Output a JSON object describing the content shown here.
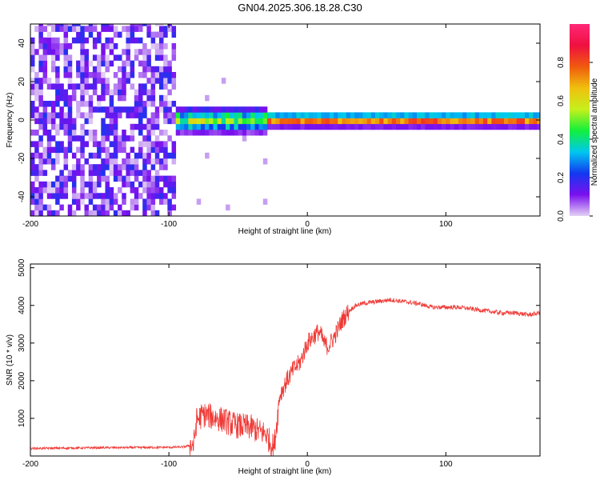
{
  "title": "GN04.2025.306.18.28.C30",
  "chart_data": [
    {
      "type": "heatmap",
      "xlabel": "Height of straight line (km)",
      "ylabel": "Frequency (Hz)",
      "xlim": [
        -200,
        168
      ],
      "ylim": [
        -50,
        50
      ],
      "xticks": [
        -200,
        -100,
        0,
        100
      ],
      "yticks": [
        -40,
        -20,
        0,
        20,
        40
      ],
      "colorbar": {
        "label": "Normalized spectral amplitude",
        "range": [
          0,
          1
        ],
        "ticks": [
          "0.0",
          "0.2",
          "0.4",
          "0.6",
          "0.8"
        ],
        "colormap": [
          "#e4d2f4",
          "#7a10ee",
          "#1238f0",
          "#00c8f0",
          "#12f03c",
          "#c6f01c",
          "#f0c00e",
          "#f05a0e",
          "#ef1040",
          "#ff2878"
        ]
      },
      "regions": [
        {
          "x_range": [
            -200,
            -95
          ],
          "description": "broadband noise",
          "amplitude": 0.15
        },
        {
          "x_range": [
            -95,
            -30
          ],
          "center_hz": 0,
          "bandwidth_hz": 8,
          "amplitude": 0.6
        },
        {
          "x_range": [
            -30,
            168
          ],
          "center_hz": 0,
          "bandwidth_hz": 4,
          "amplitude": 0.95
        }
      ]
    },
    {
      "type": "line",
      "xlabel": "Height of straight line (km)",
      "ylabel": "SNR (10 * v/v)",
      "xlim": [
        -200,
        168
      ],
      "ylim": [
        0,
        5100
      ],
      "xticks": [
        -200,
        -100,
        0,
        100
      ],
      "yticks": [
        1000,
        2000,
        3000,
        4000,
        5000
      ],
      "color": "#ef3a36",
      "series": [
        {
          "x": [
            -200,
            -150,
            -100,
            -90,
            -82,
            -80,
            -75,
            -70,
            -65,
            -60,
            -55,
            -50,
            -45,
            -40,
            -35,
            -30,
            -26,
            -24,
            -22,
            -20,
            -15,
            -10,
            -5,
            0,
            5,
            8,
            10,
            12,
            15,
            20,
            25,
            30,
            35,
            40,
            50,
            60,
            70,
            80,
            90,
            100,
            110,
            120,
            130,
            140,
            150,
            160,
            168
          ],
          "y": [
            200,
            220,
            230,
            240,
            300,
            950,
            1100,
            1050,
            1000,
            950,
            850,
            800,
            780,
            750,
            650,
            600,
            300,
            250,
            900,
            1600,
            2000,
            2300,
            2500,
            3000,
            3200,
            3300,
            3200,
            3000,
            2900,
            3200,
            3600,
            3850,
            4000,
            4050,
            4100,
            4150,
            4100,
            4050,
            3950,
            3950,
            3950,
            3900,
            3850,
            3800,
            3800,
            3750,
            3800
          ]
        }
      ]
    }
  ]
}
